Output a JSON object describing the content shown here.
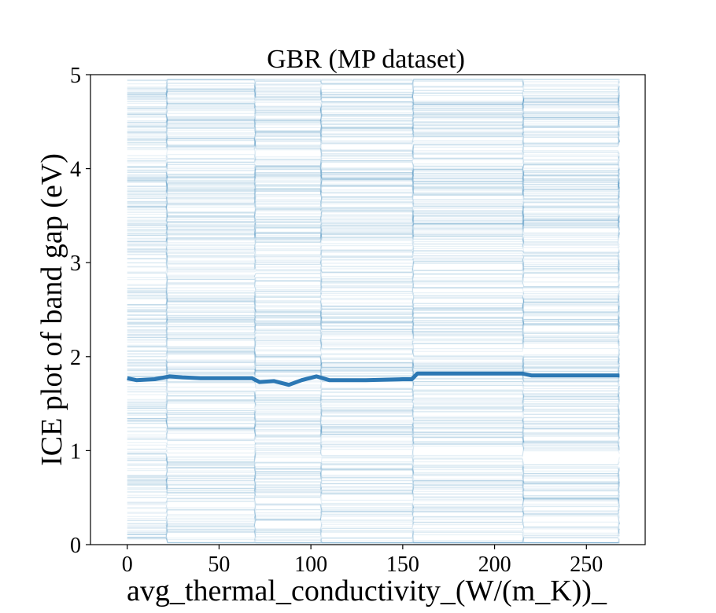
{
  "chart_data": {
    "type": "line",
    "title": "GBR (MP dataset)",
    "xlabel": "avg_thermal_conductivity_(W/(m_K))_",
    "ylabel": "ICE plot of band gap (eV)",
    "xlim": [
      -20,
      282
    ],
    "ylim": [
      0,
      5
    ],
    "xticks": [
      0,
      50,
      100,
      150,
      200,
      250
    ],
    "yticks": [
      0,
      1,
      2,
      3,
      4,
      5
    ],
    "xtick_labels": [
      "0",
      "50",
      "100",
      "150",
      "200",
      "250"
    ],
    "ytick_labels": [
      "0",
      "1",
      "2",
      "3",
      "4",
      "5"
    ],
    "grid": false,
    "series": [
      {
        "role": "average",
        "color": "#2c78b4",
        "x": [
          0,
          5,
          15,
          23,
          30,
          40,
          55,
          68,
          72,
          80,
          88,
          95,
          103,
          110,
          130,
          150,
          155,
          158,
          200,
          215,
          220,
          268
        ],
        "y": [
          1.77,
          1.75,
          1.76,
          1.79,
          1.78,
          1.77,
          1.77,
          1.77,
          1.73,
          1.74,
          1.7,
          1.75,
          1.79,
          1.75,
          1.75,
          1.76,
          1.76,
          1.82,
          1.82,
          1.82,
          1.8,
          1.8
        ]
      }
    ],
    "ice_curves": {
      "color": "#1f77b4",
      "count": 420,
      "x_range": [
        0,
        268
      ],
      "y_range": [
        0.05,
        4.95
      ],
      "step_points_x": [
        22,
        70,
        106,
        156,
        216
      ]
    }
  }
}
